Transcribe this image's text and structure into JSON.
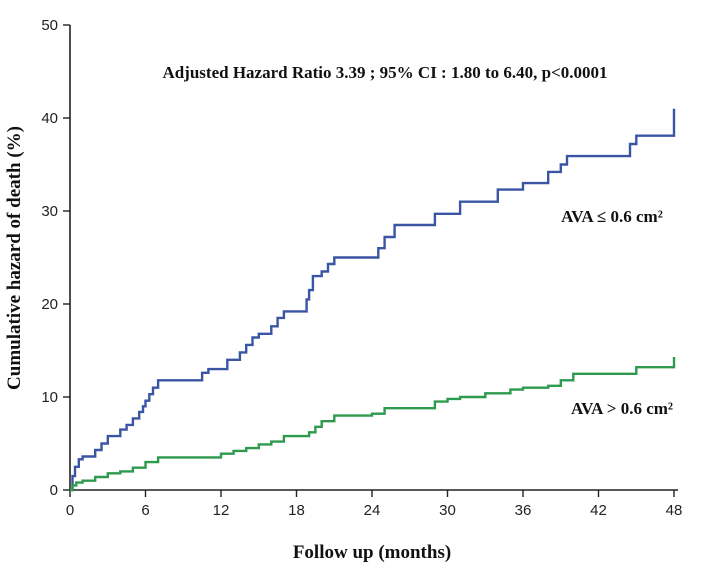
{
  "chart_data": {
    "type": "line",
    "title": "",
    "annotation": "Adjusted Hazard Ratio 3.39 ; 95% CI : 1.80 to 6.40, p<0.0001",
    "xlabel": "Follow up (months)",
    "ylabel": "Cumulative hazard of death (%)",
    "xlim": [
      0,
      48
    ],
    "ylim": [
      0,
      50
    ],
    "xticks": [
      0,
      6,
      12,
      18,
      24,
      30,
      36,
      42,
      48
    ],
    "yticks": [
      0,
      10,
      20,
      30,
      40,
      50
    ],
    "grid": false,
    "series": [
      {
        "name": "AVA ≤ 0.6 cm²",
        "color": "#3a55a4",
        "step": true,
        "x": [
          0,
          0.2,
          0.4,
          0.7,
          1,
          2,
          2.5,
          3,
          4,
          4.5,
          5,
          5.5,
          5.8,
          6,
          6.3,
          6.6,
          7,
          10,
          10.5,
          11,
          12.5,
          13.5,
          14,
          14.5,
          15,
          16,
          16.5,
          17,
          18.5,
          18.8,
          19,
          19.3,
          20,
          20.5,
          21,
          24,
          24.5,
          25,
          25.8,
          28,
          29,
          31,
          32,
          34,
          35.5,
          36,
          38,
          39,
          39.5,
          40,
          44.5,
          45,
          47.5,
          48
        ],
        "y": [
          0,
          1.5,
          2.5,
          3.3,
          3.6,
          4.3,
          5.0,
          5.8,
          6.5,
          7.0,
          7.7,
          8.4,
          9.0,
          9.6,
          10.3,
          11.0,
          11.8,
          11.8,
          12.6,
          13.0,
          14.0,
          14.8,
          15.6,
          16.4,
          16.8,
          17.6,
          18.5,
          19.2,
          19.2,
          20.5,
          21.5,
          23.0,
          23.5,
          24.3,
          25.0,
          25.0,
          26.0,
          27.2,
          28.5,
          28.5,
          29.7,
          31.0,
          31.0,
          32.3,
          32.3,
          33.0,
          34.2,
          35.0,
          35.9,
          35.9,
          37.2,
          38.1,
          38.1,
          41.0
        ]
      },
      {
        "name": "AVA > 0.6 cm²",
        "color": "#2e9a4e",
        "step": true,
        "x": [
          0,
          0.2,
          0.5,
          1,
          2,
          3,
          4,
          5,
          6,
          7,
          10,
          12,
          13,
          14,
          15,
          16,
          17,
          19,
          19.5,
          20,
          21,
          24,
          25,
          29,
          30,
          31,
          33,
          35,
          36,
          38,
          39,
          40,
          44,
          45,
          48
        ],
        "y": [
          0,
          0.5,
          0.8,
          1.0,
          1.4,
          1.8,
          2.0,
          2.4,
          3.0,
          3.5,
          3.5,
          3.9,
          4.2,
          4.5,
          4.9,
          5.2,
          5.8,
          6.2,
          6.8,
          7.4,
          8.0,
          8.2,
          8.8,
          9.5,
          9.8,
          10.0,
          10.4,
          10.8,
          11.0,
          11.2,
          11.8,
          12.5,
          12.5,
          13.2,
          14.3
        ]
      }
    ]
  }
}
